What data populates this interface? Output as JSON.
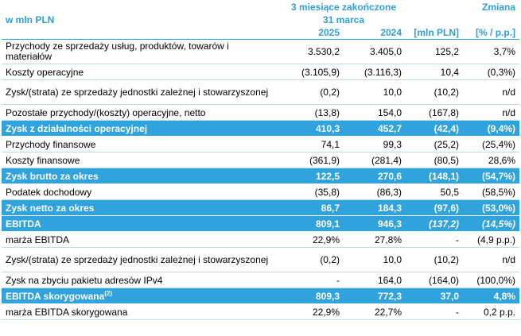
{
  "header": {
    "unit_label": "w mln PLN",
    "period_line1": "3 miesiące zakończone",
    "period_line2": "31 marca",
    "change_label": "Zmiana",
    "year_2025": "2025",
    "year_2024": "2024",
    "change_unit_pln": "[mln PLN]",
    "change_unit_pct": "[% / p.p.]"
  },
  "rows": [
    {
      "label": "Przychody ze sprzedaży usług, produktów, towarów i materiałów",
      "v2025": "3.530,2",
      "v2024": "3.405,0",
      "chg": "125,2",
      "pct": "3,7%",
      "highlight": false,
      "tall": true
    },
    {
      "label": "Koszty operacyjne",
      "v2025": "(3.105,9)",
      "v2024": "(3.116,3)",
      "chg": "10,4",
      "pct": "(0,3%)",
      "highlight": false,
      "tall": false
    },
    {
      "label": "Zysk/(strata) ze sprzedaży jednostki zależnej i stowarzyszonej",
      "v2025": "(0,2)",
      "v2024": "10,0",
      "chg": "(10,2)",
      "pct": "n/d",
      "highlight": false,
      "tall": true
    },
    {
      "label": "Pozostałe przychody/(koszty) operacyjne, netto",
      "v2025": "(13,8)",
      "v2024": "154,0",
      "chg": "(167,8)",
      "pct": "n/d",
      "highlight": false,
      "tall": false
    },
    {
      "label": "Zysk z działalności operacyjnej",
      "v2025": "410,3",
      "v2024": "452,7",
      "chg": "(42,4)",
      "pct": "(9,4%)",
      "highlight": true,
      "tall": false
    },
    {
      "label": "Przychody finansowe",
      "v2025": "74,1",
      "v2024": "99,3",
      "chg": "(25,2)",
      "pct": "(25,4%)",
      "highlight": false,
      "tall": false
    },
    {
      "label": "Koszty finansowe",
      "v2025": "(361,9)",
      "v2024": "(281,4)",
      "chg": "(80,5)",
      "pct": "28,6%",
      "highlight": false,
      "tall": false
    },
    {
      "label": "Zysk brutto za okres",
      "v2025": "122,5",
      "v2024": "270,6",
      "chg": "(148,1)",
      "pct": "(54,7%)",
      "highlight": true,
      "tall": false
    },
    {
      "label": "Podatek dochodowy",
      "v2025": "(35,8)",
      "v2024": "(86,3)",
      "chg": "50,5",
      "pct": "(58,5%)",
      "highlight": false,
      "tall": false
    },
    {
      "label": "Zysk netto za okres",
      "v2025": "86,7",
      "v2024": "184,3",
      "chg": "(97,6)",
      "pct": "(53,0%)",
      "highlight": true,
      "tall": false
    },
    {
      "label": "EBITDA",
      "v2025": "809,1",
      "v2024": "946,3",
      "chg": "(137,2)",
      "pct": "(14,5%)",
      "highlight": true,
      "tall": false,
      "italic_change": true
    },
    {
      "label": "marża EBITDA",
      "v2025": "22,9%",
      "v2024": "27,8%",
      "chg": "-",
      "pct": "(4,9 p.p.)",
      "highlight": false,
      "tall": false
    },
    {
      "label": "Zysk/(strata) ze sprzedaży jednostki zależnej i stowarzyszonej",
      "v2025": "(0,2)",
      "v2024": "10,0",
      "chg": "(10,2)",
      "pct": "n/d",
      "highlight": false,
      "tall": true
    },
    {
      "label": "Zysk na zbyciu pakietu adresów IPv4",
      "v2025": "-",
      "v2024": "164,0",
      "chg": "(164,0)",
      "pct": "(100,0%)",
      "highlight": false,
      "tall": false
    },
    {
      "label": "EBITDA skorygowana",
      "sup": "(2)",
      "v2025": "809,3",
      "v2024": "772,3",
      "chg": "37,0",
      "pct": "4,8%",
      "highlight": true,
      "tall": false
    },
    {
      "label": "marża EBITDA skorygowana",
      "v2025": "22,9%",
      "v2024": "22,7%",
      "chg": "-",
      "pct": "0,2 p.p.",
      "highlight": false,
      "tall": false
    }
  ]
}
